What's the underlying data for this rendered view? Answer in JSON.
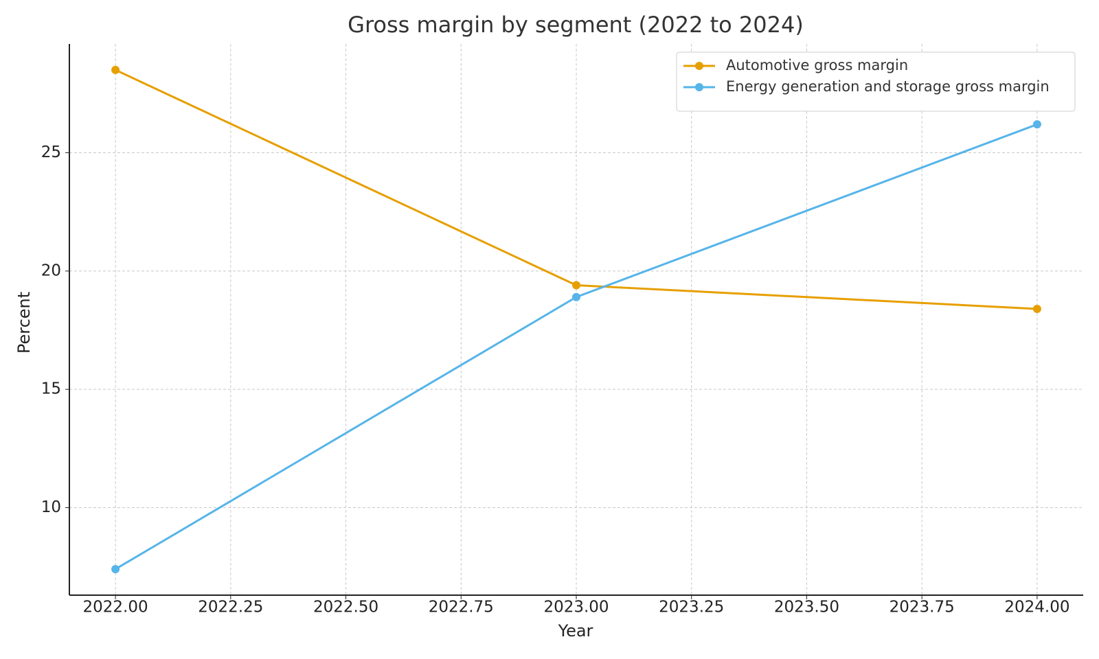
{
  "chart_data": {
    "type": "line",
    "title": "Gross margin by segment (2022 to 2024)",
    "x_label": "Year",
    "y_label": "Percent",
    "x": [
      2022,
      2023,
      2024
    ],
    "series": [
      {
        "name": "Automotive gross margin",
        "color": "#e69f00",
        "values": [
          28.5,
          19.4,
          18.4
        ]
      },
      {
        "name": "Energy generation and storage gross margin",
        "color": "#56b4e9",
        "values": [
          7.4,
          18.9,
          26.2
        ]
      }
    ],
    "xlim": [
      2021.9,
      2024.1
    ],
    "xticks": [
      {
        "value": 2022,
        "label": "2022.00"
      },
      {
        "value": 2022.25,
        "label": "2022.25"
      },
      {
        "value": 2022.5,
        "label": "2022.50"
      },
      {
        "value": 2022.75,
        "label": "2022.75"
      },
      {
        "value": 2023,
        "label": "2023.00"
      },
      {
        "value": 2023.25,
        "label": "2023.25"
      },
      {
        "value": 2023.5,
        "label": "2023.50"
      },
      {
        "value": 2023.75,
        "label": "2023.75"
      },
      {
        "value": 2024,
        "label": "2024.00"
      }
    ],
    "ylim": [
      6.3,
      29.6
    ],
    "yticks": [
      10,
      15,
      20,
      25
    ],
    "grid": true,
    "legend": "upper right"
  }
}
